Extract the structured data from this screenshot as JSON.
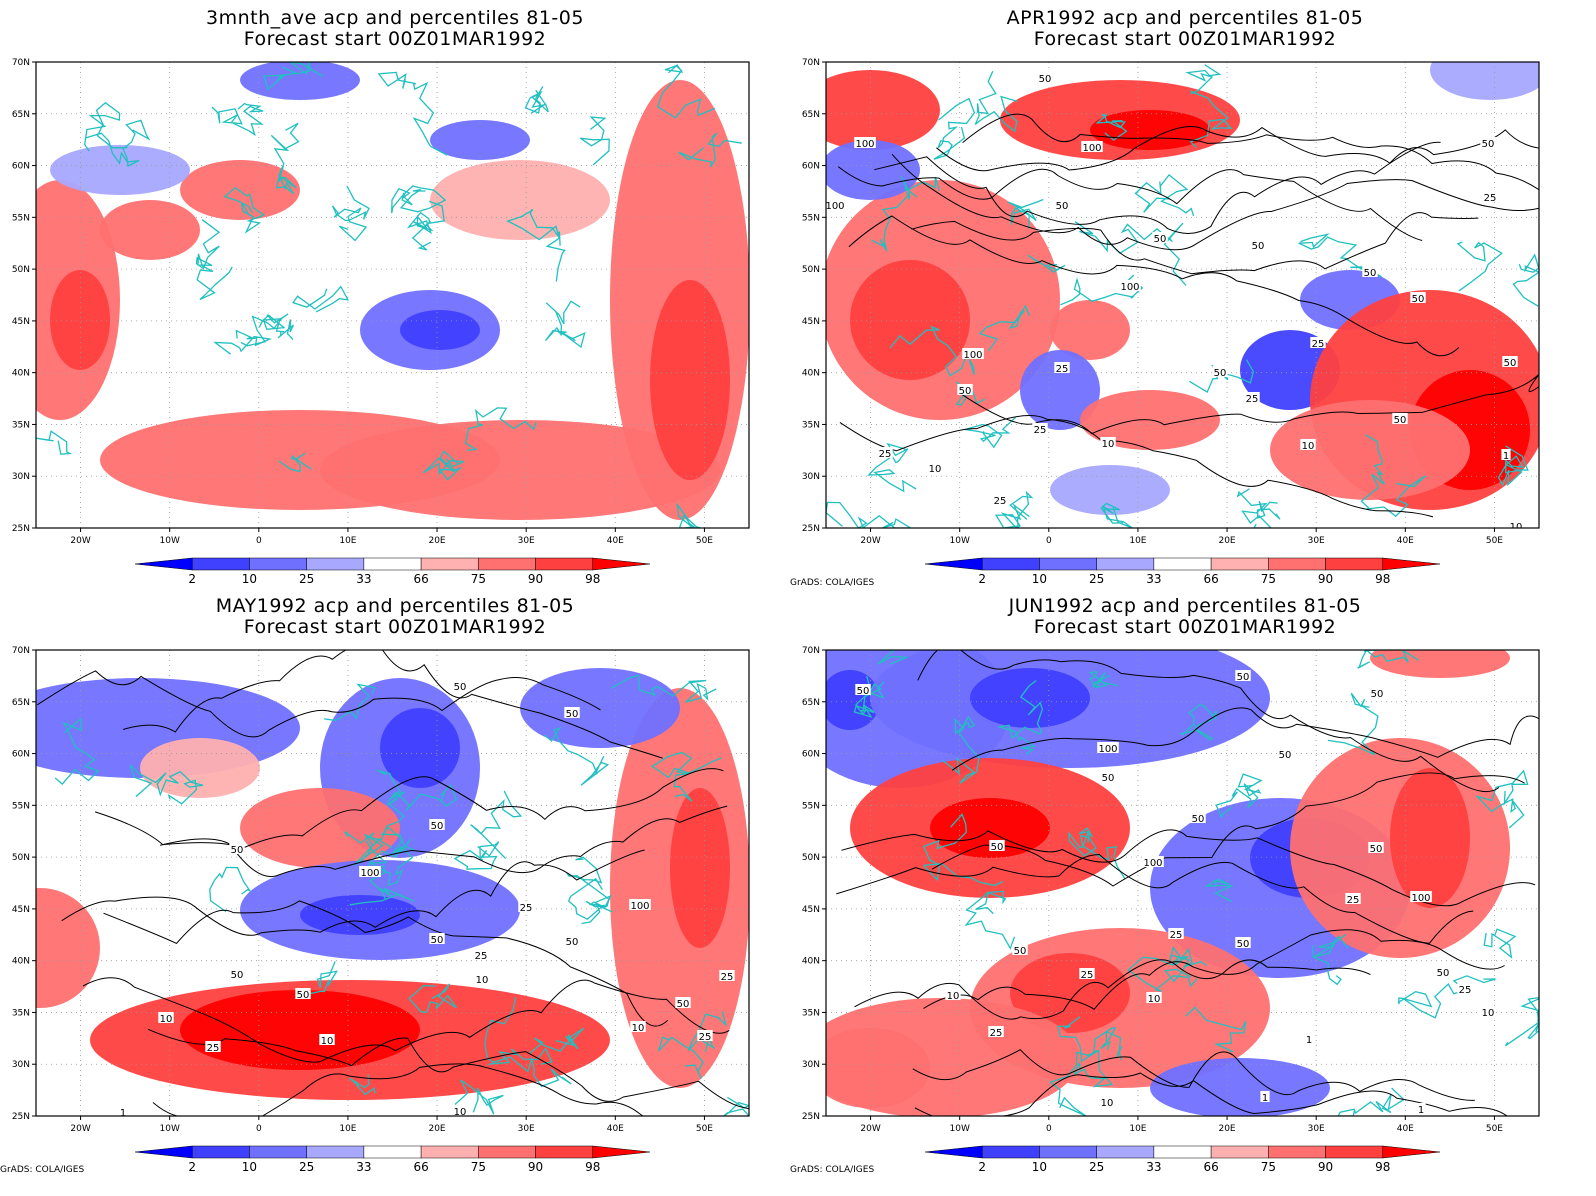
{
  "panels": [
    {
      "title_line1": "3mnth_ave acp and percentiles 81-05",
      "title_line2": "Forecast start 00Z01MAR1992",
      "credit": "",
      "contour_labels": []
    },
    {
      "title_line1": "APR1992 acp and percentiles 81-05",
      "title_line2": "Forecast start 00Z01MAR1992",
      "credit": "GrADS: COLA/IGES",
      "contour_labels": [
        "50",
        "100",
        "100",
        "100",
        "50",
        "50",
        "50",
        "50",
        "50",
        "50",
        "100",
        "100",
        "50",
        "25",
        "25",
        "25",
        "25",
        "50",
        "10",
        "10",
        "10",
        "25",
        "25",
        "1",
        "50",
        "25",
        "50",
        "10"
      ]
    },
    {
      "title_line1": "MAY1992 acp and percentiles 81-05",
      "title_line2": "Forecast start 00Z01MAR1992",
      "credit": "GrADS: COLA/IGES",
      "contour_labels": [
        "50",
        "50",
        "50",
        "50",
        "100",
        "25",
        "50",
        "25",
        "100",
        "50",
        "10",
        "50",
        "50",
        "10",
        "10",
        "25",
        "25",
        "50",
        "10",
        "25",
        "10",
        "1"
      ]
    },
    {
      "title_line1": "JUN1992 acp and percentiles 81-05",
      "title_line2": "Forecast start 00Z01MAR1992",
      "credit": "GrADS: COLA/IGES",
      "contour_labels": [
        "50",
        "50",
        "50",
        "50",
        "100",
        "50",
        "50",
        "50",
        "100",
        "50",
        "50",
        "25",
        "25",
        "25",
        "50",
        "10",
        "100",
        "25",
        "50",
        "25",
        "10",
        "1",
        "1",
        "10",
        "10",
        "1"
      ]
    }
  ],
  "map": {
    "lon_ticks": [
      "20W",
      "10W",
      "0",
      "10E",
      "20E",
      "30E",
      "40E",
      "50E"
    ],
    "lon_values": [
      -20,
      -10,
      0,
      10,
      20,
      30,
      40,
      50
    ],
    "lat_ticks": [
      "70N",
      "65N",
      "60N",
      "55N",
      "50N",
      "45N",
      "40N",
      "35N",
      "30N",
      "25N"
    ],
    "lat_values": [
      70,
      65,
      60,
      55,
      50,
      45,
      40,
      35,
      30,
      25
    ],
    "lon_range": [
      -25,
      55
    ],
    "lat_range": [
      25,
      70
    ]
  },
  "colorbar": {
    "labels": [
      "2",
      "10",
      "25",
      "33",
      "66",
      "75",
      "90",
      "98"
    ],
    "colors": [
      "#0000ff",
      "#4040ff",
      "#7070ff",
      "#a8a8ff",
      "#ffffff",
      "#ffb0b0",
      "#ff7070",
      "#ff4040",
      "#ff0000"
    ]
  },
  "colors": {
    "coast": "#20c0c0",
    "contour": "#000000",
    "grid": "#999999"
  }
}
